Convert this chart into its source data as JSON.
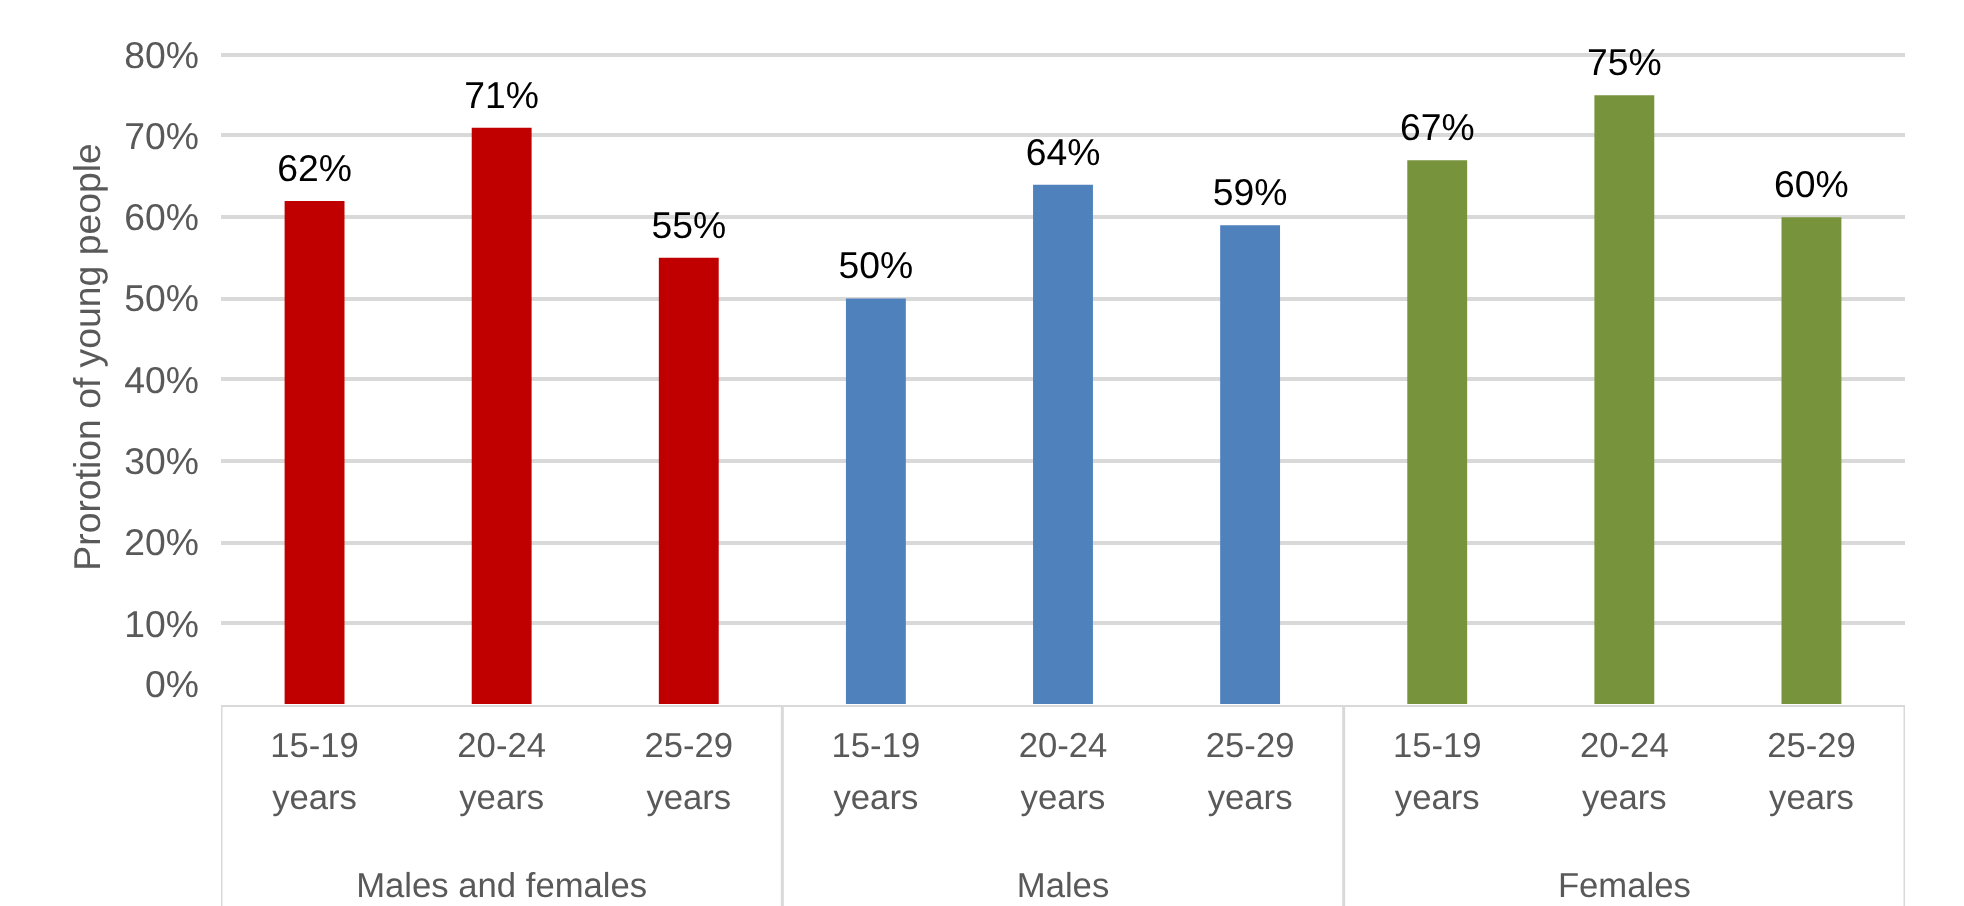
{
  "chart_data": {
    "type": "bar",
    "ylabel": "Prorotion of young people",
    "categories": [
      "15-19 years",
      "20-24 years",
      "25-29 years",
      "15-19 years",
      "20-24 years",
      "25-29 years",
      "15-19 years",
      "20-24 years",
      "25-29 years"
    ],
    "series": [
      {
        "color": "#c00000",
        "values": [
          62,
          71,
          55,
          null,
          null,
          null,
          null,
          null,
          null
        ],
        "value_labels": [
          "62%",
          "71%",
          "55%",
          null,
          null,
          null,
          null,
          null,
          null
        ]
      },
      {
        "color": "#4f81bd",
        "values": [
          null,
          null,
          null,
          50,
          64,
          59,
          null,
          null,
          null
        ],
        "value_labels": [
          null,
          null,
          null,
          "50%",
          "64%",
          "59%",
          null,
          null,
          null
        ]
      },
      {
        "color": "#77933c",
        "values": [
          null,
          null,
          null,
          null,
          null,
          null,
          67,
          75,
          60
        ],
        "value_labels": [
          null,
          null,
          null,
          null,
          null,
          null,
          "67%",
          "75%",
          "60%"
        ]
      }
    ],
    "ylim": [
      0,
      80
    ],
    "yticks": [
      {
        "value": 0,
        "label": "0%"
      },
      {
        "value": 10,
        "label": "10%"
      },
      {
        "value": 20,
        "label": "20%"
      },
      {
        "value": 30,
        "label": "30%"
      },
      {
        "value": 40,
        "label": "40%"
      },
      {
        "value": 50,
        "label": "50%"
      },
      {
        "value": 60,
        "label": "60%"
      },
      {
        "value": 70,
        "label": "70%"
      },
      {
        "value": 80,
        "label": "80%"
      }
    ],
    "annotations": [
      "Males and females",
      "Males",
      "Females"
    ],
    "grid": "y"
  }
}
